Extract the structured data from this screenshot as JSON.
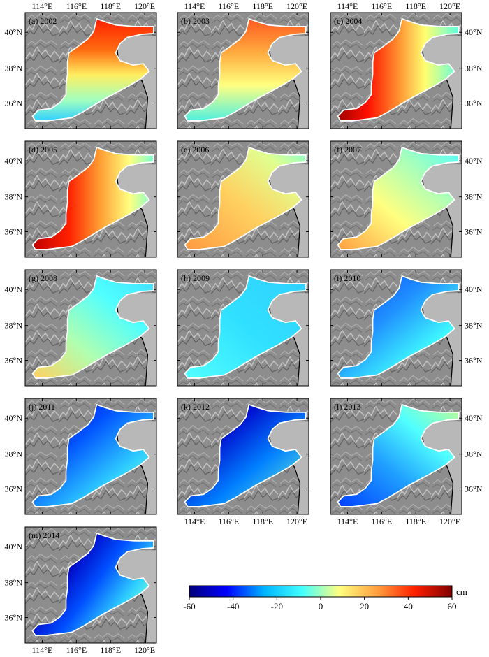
{
  "panels": [
    {
      "label": "(a) 2002",
      "gradient": "grad-2002"
    },
    {
      "label": "(b) 2003",
      "gradient": "grad-2003"
    },
    {
      "label": "(c) 2004",
      "gradient": "grad-2004"
    },
    {
      "label": "(d) 2005",
      "gradient": "grad-2005"
    },
    {
      "label": "(e) 2006",
      "gradient": "grad-2006"
    },
    {
      "label": "(f) 2007",
      "gradient": "grad-2007"
    },
    {
      "label": "(g) 2008",
      "gradient": "grad-2008"
    },
    {
      "label": "(h) 2009",
      "gradient": "grad-2009"
    },
    {
      "label": "(i) 2010",
      "gradient": "grad-2010"
    },
    {
      "label": "(j) 2011",
      "gradient": "grad-2011"
    },
    {
      "label": "(k) 2012",
      "gradient": "grad-2012"
    },
    {
      "label": "(l) 2013",
      "gradient": "grad-2013"
    },
    {
      "label": "(m) 2014",
      "gradient": "grad-2014"
    }
  ],
  "axes": {
    "lon_labels": [
      "114°E",
      "116°E",
      "118°E",
      "120°E"
    ],
    "lat_labels": [
      "40°N",
      "38°N",
      "36°N"
    ]
  },
  "colorbar": {
    "unit": "cm",
    "ticks": [
      "-60",
      "-40",
      "-20",
      "0",
      "20",
      "40",
      "60"
    ],
    "colors": [
      "#00007a",
      "#0000ff",
      "#00b4ff",
      "#40ffff",
      "#ffff80",
      "#ffa040",
      "#ff2000",
      "#800000"
    ]
  }
}
